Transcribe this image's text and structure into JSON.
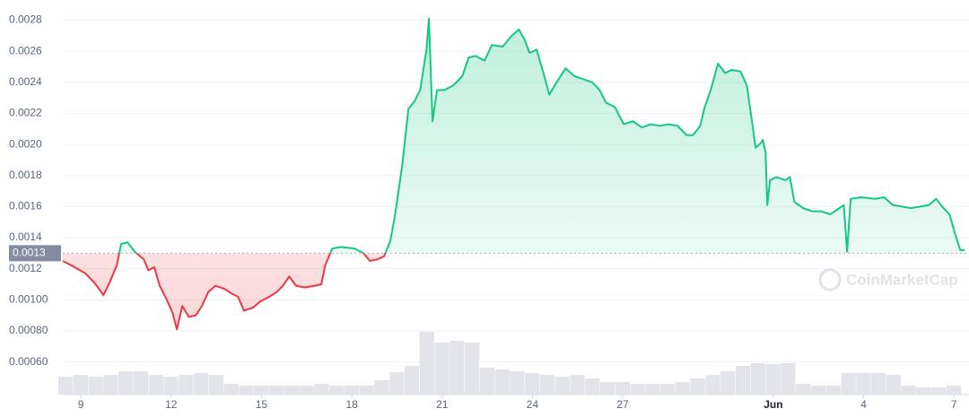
{
  "chart_data": {
    "type": "line",
    "x": [
      8.4,
      8.7,
      9.15,
      9.45,
      9.75,
      9.95,
      10.19,
      10.34,
      10.55,
      10.79,
      11.09,
      11.24,
      11.44,
      11.62,
      11.83,
      12.04,
      12.19,
      12.37,
      12.58,
      12.82,
      13.02,
      13.23,
      13.47,
      13.77,
      14.01,
      14.22,
      14.42,
      14.72,
      14.96,
      15.26,
      15.5,
      15.71,
      15.92,
      16.15,
      16.45,
      16.75,
      16.99,
      17.11,
      17.35,
      17.64,
      18.09,
      18.39,
      18.6,
      18.84,
      19.07,
      19.28,
      19.43,
      19.67,
      19.88,
      20.09,
      20.27,
      20.48,
      20.56,
      20.68,
      20.83,
      21.07,
      21.37,
      21.67,
      21.88,
      22.11,
      22.41,
      22.65,
      23.01,
      23.31,
      23.55,
      23.75,
      23.9,
      24.14,
      24.35,
      24.56,
      24.8,
      25.1,
      25.39,
      25.69,
      25.99,
      26.23,
      26.44,
      26.74,
      27.03,
      27.33,
      27.63,
      27.93,
      28.23,
      28.52,
      28.82,
      29.12,
      29.33,
      29.57,
      29.72,
      29.92,
      30.16,
      30.4,
      30.61,
      30.91,
      31.12,
      31.29,
      31.41,
      31.59,
      31.65,
      31.74,
      31.8,
      31.89,
      32.1,
      32.4,
      32.55,
      32.7,
      32.99,
      33.29,
      33.59,
      33.89,
      34.19,
      34.34,
      34.45,
      34.57,
      34.93,
      35.38,
      35.68,
      35.97,
      36.27,
      36.57,
      36.87,
      37.17,
      37.41,
      37.61,
      37.85,
      38.06,
      38.21,
      38.36
    ],
    "values": [
      0.00125,
      0.00122,
      0.00117,
      0.00111,
      0.00103,
      0.00111,
      0.00122,
      0.00136,
      0.00137,
      0.00131,
      0.00126,
      0.00119,
      0.00121,
      0.00109,
      0.00101,
      0.00092,
      0.00081,
      0.00096,
      0.00089,
      0.0009,
      0.00096,
      0.00105,
      0.00109,
      0.00107,
      0.00104,
      0.00102,
      0.00093,
      0.00095,
      0.00099,
      0.00102,
      0.00105,
      0.00109,
      0.00115,
      0.00109,
      0.00108,
      0.00109,
      0.0011,
      0.00122,
      0.00133,
      0.00134,
      0.00133,
      0.0013,
      0.00125,
      0.00126,
      0.00128,
      0.00138,
      0.00154,
      0.00186,
      0.00223,
      0.00228,
      0.00235,
      0.00261,
      0.00281,
      0.00215,
      0.00235,
      0.00235,
      0.00238,
      0.00244,
      0.00256,
      0.00257,
      0.00254,
      0.00264,
      0.00263,
      0.0027,
      0.00274,
      0.00267,
      0.00259,
      0.00261,
      0.00247,
      0.00232,
      0.0024,
      0.00249,
      0.00244,
      0.00242,
      0.0024,
      0.00235,
      0.00227,
      0.00224,
      0.00213,
      0.00215,
      0.00211,
      0.00213,
      0.00212,
      0.00213,
      0.00212,
      0.00206,
      0.00206,
      0.00212,
      0.00224,
      0.00235,
      0.00252,
      0.00246,
      0.00248,
      0.00247,
      0.00238,
      0.00215,
      0.00198,
      0.00201,
      0.00203,
      0.00195,
      0.00161,
      0.00177,
      0.00179,
      0.00177,
      0.00179,
      0.00163,
      0.00159,
      0.00157,
      0.00157,
      0.00155,
      0.00159,
      0.00161,
      0.00131,
      0.00165,
      0.00166,
      0.00165,
      0.00166,
      0.00161,
      0.0016,
      0.00159,
      0.0016,
      0.00161,
      0.00165,
      0.0016,
      0.00155,
      0.00141,
      0.00132,
      0.00132
    ],
    "baseline": 0.0013,
    "color_up": "#16c784",
    "color_down": "#ea3943",
    "xlim": [
      8.4,
      38.38
    ],
    "xticks": [
      9,
      12,
      15,
      18,
      21,
      24,
      27,
      {
        "value": 32,
        "label": "Jun"
      },
      {
        "value": 35,
        "label": "4"
      },
      {
        "value": 38,
        "label": "7"
      }
    ],
    "ylim": [
      0.00039,
      0.00293
    ],
    "yticks": [
      {
        "value": 0.0006,
        "label": "0.00060"
      },
      {
        "value": 0.0008,
        "label": "0.00080"
      },
      {
        "value": 0.001,
        "label": "0.00100"
      },
      0.0012,
      0.0014,
      0.0016,
      0.0018,
      {
        "value": 0.002,
        "label": "0.0020"
      },
      0.0022,
      0.0024,
      0.0026,
      0.0028
    ],
    "grid": true,
    "volume": {
      "color": "#e3e4ea",
      "ylim": [
        0,
        100
      ],
      "x": [
        8.5,
        9,
        9.5,
        10,
        10.5,
        11,
        11.5,
        12,
        12.5,
        13,
        13.5,
        14,
        14.5,
        15,
        15.5,
        16,
        16.5,
        17,
        17.5,
        18,
        18.5,
        19,
        19.5,
        20,
        20.5,
        21,
        21.5,
        22,
        22.5,
        23,
        23.5,
        24,
        24.5,
        25,
        25.5,
        26,
        26.5,
        27,
        27.5,
        28,
        28.5,
        29,
        29.5,
        30,
        30.5,
        31,
        31.5,
        32,
        32.5,
        33,
        33.5,
        34,
        34.5,
        35,
        35.5,
        36,
        36.5,
        37,
        37.5,
        38
      ],
      "values": [
        20,
        22,
        20,
        22,
        26,
        26,
        22,
        20,
        22,
        24,
        22,
        12,
        10,
        10,
        10,
        10,
        10,
        12,
        10,
        10,
        10,
        16,
        25,
        32,
        70,
        58,
        60,
        58,
        30,
        28,
        26,
        24,
        22,
        20,
        22,
        18,
        14,
        14,
        12,
        12,
        12,
        14,
        18,
        22,
        26,
        32,
        35,
        34,
        35,
        12,
        10,
        10,
        24,
        24,
        24,
        22,
        10,
        8,
        8,
        10
      ]
    }
  },
  "watermark": "CoinMarketCap"
}
